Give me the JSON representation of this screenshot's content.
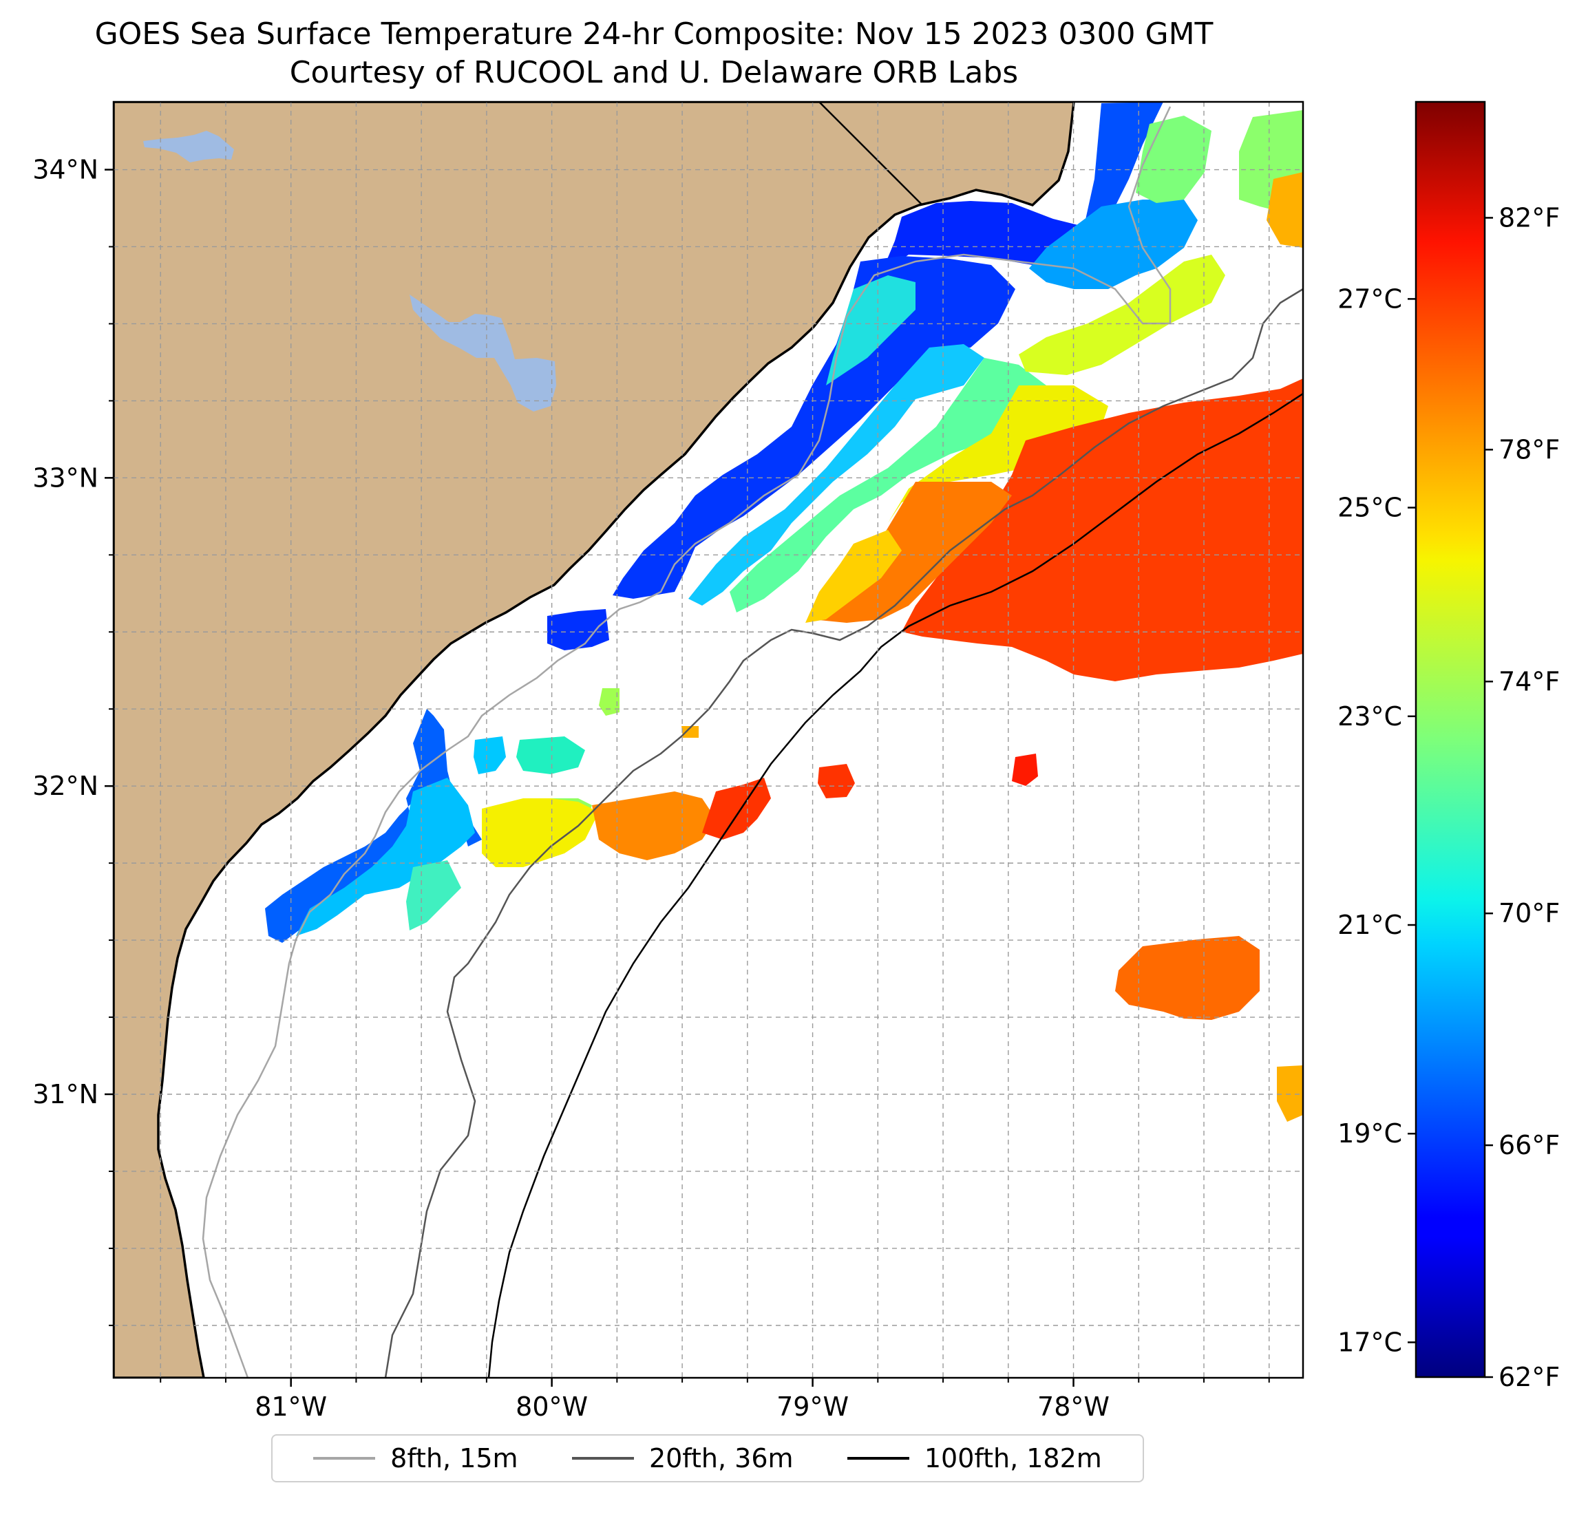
{
  "figure": {
    "title_line1": "GOES Sea Surface Temperature 24-hr Composite: Nov 15 2023 0300 GMT",
    "title_line2": "Courtesy of RUCOOL and U. Delaware ORB Labs"
  },
  "map": {
    "lon_range": [
      -81.68,
      -77.12
    ],
    "lat_range": [
      30.08,
      34.22
    ],
    "lat_ticks": [
      {
        "value": 31,
        "label": "31°N"
      },
      {
        "value": 32,
        "label": "32°N"
      },
      {
        "value": 33,
        "label": "33°N"
      },
      {
        "value": 34,
        "label": "34°N"
      }
    ],
    "lon_ticks": [
      {
        "value": -81,
        "label": "81°W"
      },
      {
        "value": -80,
        "label": "80°W"
      },
      {
        "value": -79,
        "label": "79°W"
      },
      {
        "value": -78,
        "label": "78°W"
      }
    ],
    "minor_grid_step_deg": 0.25,
    "gridlines": "dashed",
    "land_color": "#d2b48c",
    "water_body_color": "#9fbbe3",
    "ocean_color": "#ffffff",
    "colorbar": {
      "cmap": "jet",
      "fahrenheit_range": [
        62,
        84
      ],
      "fahrenheit_ticks": [
        {
          "value": 62,
          "label": "62°F"
        },
        {
          "value": 66,
          "label": "66°F"
        },
        {
          "value": 70,
          "label": "70°F"
        },
        {
          "value": 74,
          "label": "74°F"
        },
        {
          "value": 78,
          "label": "78°F"
        },
        {
          "value": 82,
          "label": "82°F"
        }
      ],
      "celsius_ticks": [
        {
          "value": 17,
          "label": "17°C"
        },
        {
          "value": 19,
          "label": "19°C"
        },
        {
          "value": 21,
          "label": "21°C"
        },
        {
          "value": 23,
          "label": "23°C"
        },
        {
          "value": 25,
          "label": "25°C"
        },
        {
          "value": 27,
          "label": "27°C"
        }
      ]
    }
  },
  "legend": {
    "items": [
      {
        "label": "8fth, 15m",
        "color": "#a6a6a6"
      },
      {
        "label": "20fth, 36m",
        "color": "#555555"
      },
      {
        "label": "100fth, 182m",
        "color": "#000000"
      }
    ]
  }
}
